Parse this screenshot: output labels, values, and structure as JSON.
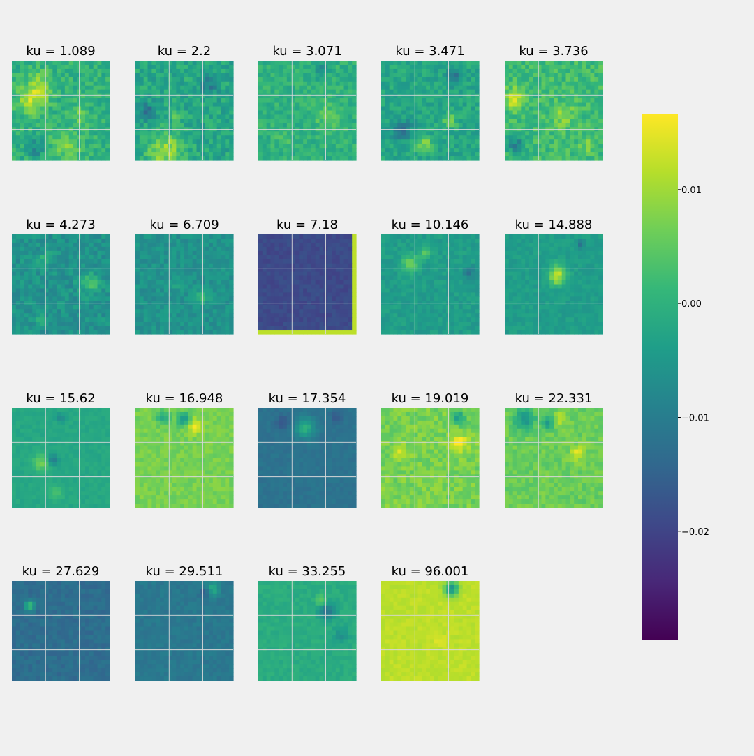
{
  "figure": {
    "background": "#f0f0f0",
    "gridline_color": "#d8d8d8"
  },
  "chart_data": {
    "type": "heatmap",
    "colormap": "viridis",
    "grid": true,
    "colorbar": {
      "placement": "right",
      "vmin": -0.0295,
      "vmax": 0.0166,
      "ticks": [
        {
          "value": 0.01,
          "label": "0.01"
        },
        {
          "value": 0.0,
          "label": "0.00"
        },
        {
          "value": -0.01,
          "label": "−0.01"
        },
        {
          "value": -0.02,
          "label": "−0.02"
        }
      ]
    },
    "panels": [
      {
        "title": "ku = 1.089",
        "base": 0.0,
        "noise": 0.42,
        "features": [
          [
            0.2,
            0.4,
            0.1,
            0.9
          ],
          [
            0.3,
            0.25,
            0.09,
            0.7
          ],
          [
            0.25,
            0.88,
            0.06,
            -0.7
          ],
          [
            0.55,
            0.85,
            0.1,
            0.6
          ],
          [
            0.7,
            0.55,
            0.06,
            0.5
          ]
        ]
      },
      {
        "title": "ku = 2.2",
        "base": -0.002,
        "noise": 0.45,
        "features": [
          [
            0.3,
            0.9,
            0.12,
            1.0
          ],
          [
            0.12,
            0.5,
            0.06,
            -0.9
          ],
          [
            0.75,
            0.25,
            0.07,
            -0.6
          ],
          [
            0.4,
            0.55,
            0.04,
            0.6
          ]
        ]
      },
      {
        "title": "ku = 3.071",
        "base": 0.0,
        "noise": 0.35,
        "features": [
          [
            0.7,
            0.55,
            0.1,
            0.4
          ],
          [
            0.65,
            0.1,
            0.05,
            -0.6
          ],
          [
            0.25,
            0.8,
            0.05,
            0.3
          ]
        ]
      },
      {
        "title": "ku = 3.471",
        "base": -0.002,
        "noise": 0.38,
        "features": [
          [
            0.2,
            0.7,
            0.07,
            -1.0
          ],
          [
            0.45,
            0.85,
            0.06,
            0.8
          ],
          [
            0.75,
            0.15,
            0.06,
            -0.8
          ],
          [
            0.7,
            0.6,
            0.05,
            0.7
          ]
        ]
      },
      {
        "title": "ku = 3.736",
        "base": 0.002,
        "noise": 0.42,
        "features": [
          [
            0.1,
            0.38,
            0.07,
            1.0
          ],
          [
            0.12,
            0.85,
            0.06,
            -1.0
          ],
          [
            0.6,
            0.55,
            0.08,
            0.6
          ],
          [
            0.85,
            0.85,
            0.05,
            0.4
          ]
        ]
      },
      {
        "title": "ku = 4.273",
        "base": -0.006,
        "noise": 0.35,
        "features": [
          [
            0.8,
            0.5,
            0.07,
            0.7
          ],
          [
            0.35,
            0.25,
            0.05,
            0.5
          ],
          [
            0.3,
            0.88,
            0.04,
            0.6
          ]
        ]
      },
      {
        "title": "ku = 6.709",
        "base": -0.006,
        "noise": 0.28,
        "features": [
          [
            0.68,
            0.62,
            0.05,
            0.6
          ],
          [
            0.45,
            0.5,
            0.04,
            0.4
          ]
        ]
      },
      {
        "title": "ku = 7.18",
        "base": -0.019,
        "noise": 0.15,
        "features": [],
        "frame": 0.012
      },
      {
        "title": "ku = 10.146",
        "base": -0.004,
        "noise": 0.22,
        "features": [
          [
            0.3,
            0.3,
            0.06,
            0.9
          ],
          [
            0.45,
            0.18,
            0.05,
            0.6
          ],
          [
            0.9,
            0.38,
            0.04,
            -0.7
          ]
        ]
      },
      {
        "title": "ku = 14.888",
        "base": -0.004,
        "noise": 0.18,
        "features": [
          [
            0.55,
            0.38,
            0.06,
            1.0
          ],
          [
            0.52,
            0.45,
            0.05,
            0.8
          ],
          [
            0.78,
            0.1,
            0.03,
            -0.6
          ]
        ]
      },
      {
        "title": "ku = 15.62",
        "base": -0.002,
        "noise": 0.12,
        "features": [
          [
            0.3,
            0.55,
            0.06,
            0.7
          ],
          [
            0.42,
            0.52,
            0.04,
            -0.7
          ],
          [
            0.45,
            0.85,
            0.06,
            0.35
          ],
          [
            0.5,
            0.1,
            0.03,
            -0.5
          ]
        ]
      },
      {
        "title": "ku = 16.948",
        "base": 0.007,
        "noise": 0.2,
        "features": [
          [
            0.5,
            0.12,
            0.05,
            -1.0
          ],
          [
            0.6,
            0.18,
            0.05,
            0.8
          ],
          [
            0.28,
            0.1,
            0.05,
            -0.7
          ]
        ]
      },
      {
        "title": "ku = 17.354",
        "base": -0.012,
        "noise": 0.12,
        "features": [
          [
            0.48,
            0.2,
            0.07,
            1.0
          ],
          [
            0.25,
            0.15,
            0.05,
            -0.4
          ],
          [
            0.8,
            0.1,
            0.04,
            -0.4
          ]
        ]
      },
      {
        "title": "ku = 19.019",
        "base": 0.007,
        "noise": 0.3,
        "features": [
          [
            0.8,
            0.35,
            0.06,
            0.8
          ],
          [
            0.8,
            0.1,
            0.05,
            -0.8
          ],
          [
            0.2,
            0.45,
            0.05,
            0.6
          ]
        ]
      },
      {
        "title": "ku = 22.331",
        "base": 0.006,
        "noise": 0.25,
        "features": [
          [
            0.2,
            0.12,
            0.07,
            -1.0
          ],
          [
            0.45,
            0.15,
            0.05,
            -0.8
          ],
          [
            0.75,
            0.45,
            0.05,
            0.8
          ],
          [
            0.55,
            0.12,
            0.05,
            0.6
          ]
        ]
      },
      {
        "title": "ku = 27.629",
        "base": -0.013,
        "noise": 0.18,
        "features": [
          [
            0.18,
            0.25,
            0.04,
            1.2
          ]
        ]
      },
      {
        "title": "ku = 29.511",
        "base": -0.011,
        "noise": 0.15,
        "features": [
          [
            0.78,
            0.08,
            0.05,
            0.9
          ],
          [
            0.72,
            0.12,
            0.04,
            -0.6
          ]
        ]
      },
      {
        "title": "ku = 33.255",
        "base": -0.001,
        "noise": 0.15,
        "features": [
          [
            0.7,
            0.3,
            0.06,
            -0.9
          ],
          [
            0.65,
            0.2,
            0.04,
            0.7
          ],
          [
            0.85,
            0.55,
            0.06,
            -0.4
          ]
        ]
      },
      {
        "title": "ku = 96.001",
        "base": 0.012,
        "noise": 0.12,
        "features": [
          [
            0.72,
            0.08,
            0.05,
            -1.5
          ],
          [
            0.6,
            0.6,
            0.04,
            0.2
          ]
        ]
      }
    ]
  }
}
